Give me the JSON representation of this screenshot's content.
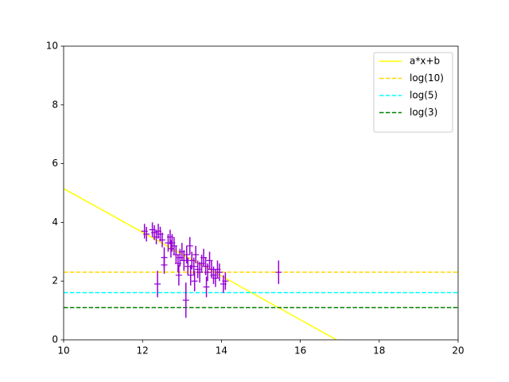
{
  "chart_data": {
    "type": "line",
    "xlim": [
      10,
      20
    ],
    "xticks": [
      10,
      12,
      14,
      16,
      18,
      20
    ],
    "ylim": [
      0,
      10
    ],
    "yticks": [
      0,
      2,
      4,
      6,
      8,
      10
    ],
    "legend": "upper right",
    "series": [
      {
        "name": "a*x+b",
        "color": "#ffff00",
        "linestyle": "solid",
        "x": [
          10,
          16.92
        ],
        "values": [
          5.15,
          0
        ]
      },
      {
        "name": "log(10)",
        "color": "#ffd700",
        "linestyle": "dashed",
        "x": [
          10,
          20
        ],
        "values": [
          2.303,
          2.303
        ]
      },
      {
        "name": "log(5)",
        "color": "#00ffff",
        "linestyle": "dashed",
        "x": [
          10,
          20
        ],
        "values": [
          1.609,
          1.609
        ]
      },
      {
        "name": "log(3)",
        "color": "#008000",
        "linestyle": "dashed",
        "x": [
          10,
          20
        ],
        "values": [
          1.099,
          1.099
        ]
      }
    ],
    "errorbar": {
      "color": "#9400d3",
      "x": [
        12.05,
        12.1,
        12.25,
        12.3,
        12.35,
        12.38,
        12.4,
        12.45,
        12.5,
        12.55,
        12.55,
        12.65,
        12.7,
        12.72,
        12.75,
        12.8,
        12.85,
        12.9,
        12.92,
        12.95,
        13.0,
        13.05,
        13.1,
        13.12,
        13.15,
        13.2,
        13.22,
        13.25,
        13.3,
        13.32,
        13.35,
        13.4,
        13.45,
        13.5,
        13.55,
        13.6,
        13.62,
        13.65,
        13.7,
        13.75,
        13.8,
        13.85,
        13.9,
        13.95,
        14.05,
        14.1,
        15.45
      ],
      "values": [
        3.7,
        3.6,
        3.75,
        3.65,
        3.5,
        1.9,
        3.7,
        3.6,
        3.4,
        2.8,
        2.55,
        3.3,
        3.5,
        3.1,
        3.3,
        3.2,
        2.9,
        2.6,
        2.2,
        2.8,
        3.0,
        2.7,
        1.35,
        2.9,
        2.5,
        3.2,
        2.2,
        2.7,
        2.5,
        2.0,
        2.9,
        2.4,
        2.3,
        2.6,
        2.8,
        2.5,
        1.8,
        2.3,
        2.7,
        2.4,
        2.2,
        2.1,
        2.4,
        2.3,
        1.9,
        2.0,
        2.3
      ],
      "errors": [
        0.25,
        0.25,
        0.25,
        0.25,
        0.25,
        0.45,
        0.25,
        0.25,
        0.25,
        0.35,
        0.3,
        0.3,
        0.25,
        0.3,
        0.3,
        0.3,
        0.3,
        0.3,
        0.35,
        0.3,
        0.3,
        0.35,
        0.6,
        0.3,
        0.3,
        0.3,
        0.35,
        0.3,
        0.3,
        0.35,
        0.3,
        0.3,
        0.35,
        0.3,
        0.3,
        0.3,
        0.35,
        0.3,
        0.3,
        0.3,
        0.3,
        0.3,
        0.3,
        0.3,
        0.3,
        0.3,
        0.4
      ]
    }
  }
}
